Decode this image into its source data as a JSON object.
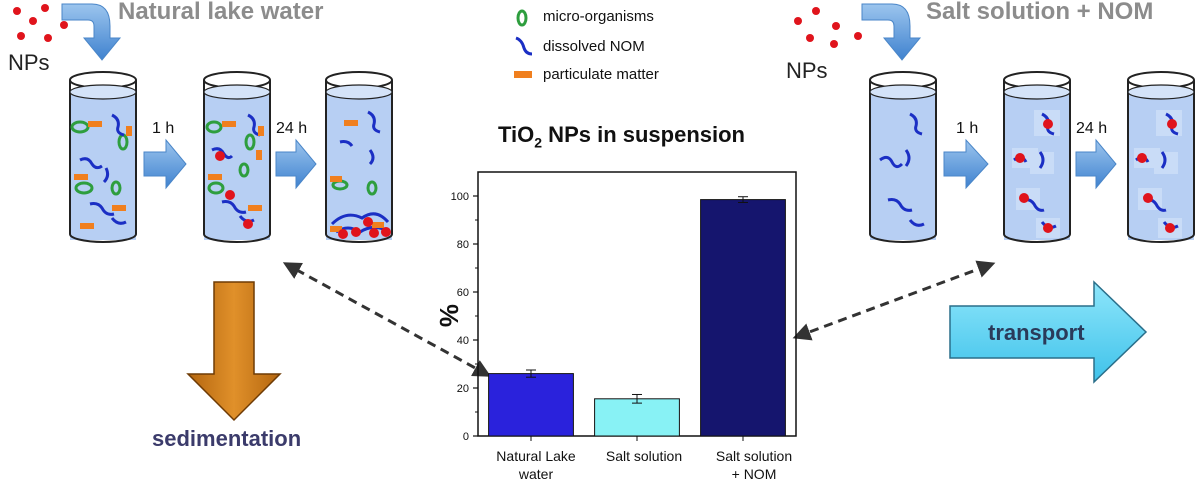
{
  "left": {
    "title": "Natural lake water",
    "nps": "NPs",
    "time1": "1 h",
    "time2": "24 h",
    "process": "sedimentation"
  },
  "right": {
    "title": "Salt solution + NOM",
    "nps": "NPs",
    "time1": "1 h",
    "time2": "24 h",
    "process": "transport"
  },
  "legend": [
    {
      "icon": "micro-organism-icon",
      "label": "micro-organisms",
      "color": "#2e9e3e"
    },
    {
      "icon": "nom-icon",
      "label": "dissolved NOM",
      "color": "#1b2fc4"
    },
    {
      "icon": "particulate-icon",
      "label": "particulate matter",
      "color": "#f07f1e"
    }
  ],
  "chart": {
    "title_main": "TiO",
    "title_sub": "2",
    "title_rest": " NPs in suspension",
    "ylabel": "%",
    "yticks": [
      "0",
      "20",
      "40",
      "60",
      "80",
      "100"
    ]
  },
  "chart_data": {
    "type": "bar",
    "categories": [
      "Natural Lake water",
      "Salt solution",
      "Salt solution + NOM"
    ],
    "values": [
      26,
      15.5,
      98.5
    ],
    "errors": [
      1.5,
      1.8,
      1.2
    ],
    "colors": [
      "#2a22dc",
      "#88f2f5",
      "#15156e"
    ],
    "title": "TiO2 NPs in suspension",
    "ylabel": "%",
    "ylim": [
      0,
      110
    ]
  },
  "colors": {
    "water": "#b7cff3",
    "arrow_blue": "#5b9bd5",
    "sediment": "#d9841c",
    "transport": "#5ad3f3",
    "np_dot": "#e0141c"
  }
}
